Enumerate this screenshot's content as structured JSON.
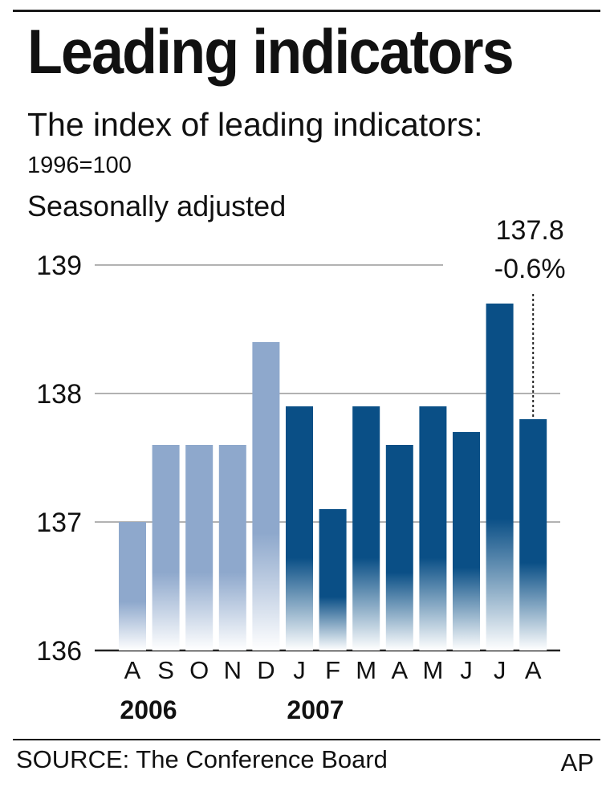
{
  "header": {
    "title": "Leading indicators",
    "subtitle": "The index of leading indicators:",
    "base_note": "1996=100",
    "adjustment_note": "Seasonally adjusted"
  },
  "footer": {
    "source": "SOURCE: The Conference Board",
    "credit": "AP"
  },
  "colors": {
    "bar_2006": "#8ea8cc",
    "bar_2007": "#0a4f86",
    "gridline": "#999999",
    "text": "#111111"
  },
  "chart_data": {
    "type": "bar",
    "title": "Leading indicators",
    "subtitle": "The index of leading indicators: 1996=100, Seasonally adjusted",
    "categories": [
      "A",
      "S",
      "O",
      "N",
      "D",
      "J",
      "F",
      "M",
      "A",
      "M",
      "J",
      "J",
      "A"
    ],
    "values": [
      137.0,
      137.6,
      137.6,
      137.6,
      138.4,
      137.9,
      137.1,
      137.9,
      137.6,
      137.9,
      137.7,
      138.7,
      137.8
    ],
    "year_of_bar": [
      "2006",
      "2006",
      "2006",
      "2006",
      "2006",
      "2007",
      "2007",
      "2007",
      "2007",
      "2007",
      "2007",
      "2007",
      "2007"
    ],
    "year_labels": [
      {
        "label": "2006",
        "start_index": 0
      },
      {
        "label": "2007",
        "start_index": 5
      }
    ],
    "ylim": [
      136,
      139
    ],
    "yticks": [
      136,
      137,
      138,
      139
    ],
    "grid": true,
    "annotation": {
      "index": 12,
      "value_text": "137.8",
      "change_text": "-0.6%"
    }
  }
}
